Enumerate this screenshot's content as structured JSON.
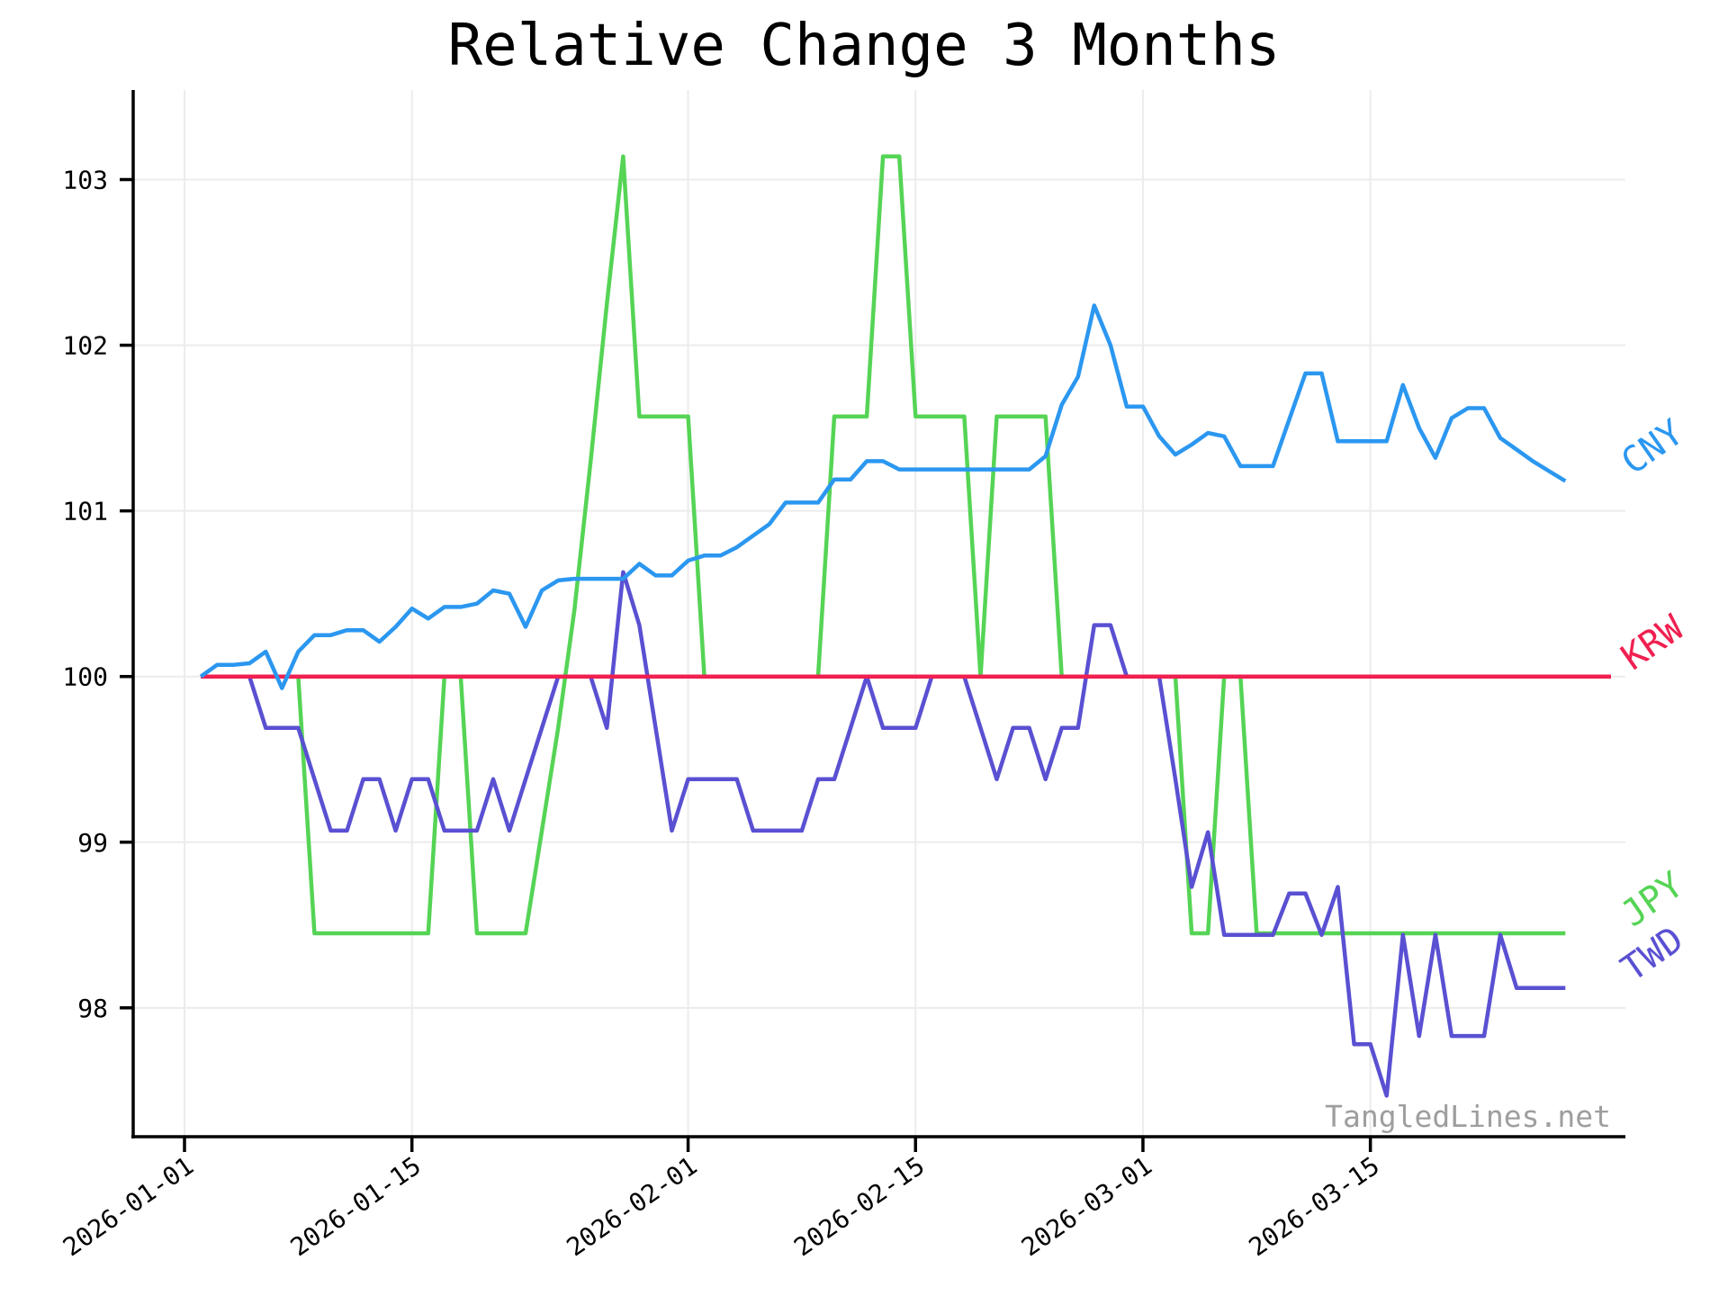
{
  "title": "Relative Change 3 Months",
  "watermark": "TangledLines.net",
  "axes": {
    "x_tick_labels": [
      "2026-01-01",
      "2026-01-15",
      "2026-02-01",
      "2026-02-15",
      "2026-03-01",
      "2026-03-15"
    ],
    "y_tick_labels": [
      "98",
      "99",
      "100",
      "101",
      "102",
      "103"
    ]
  },
  "colors": {
    "cny_blue": "#2b97f0",
    "krw_red": "#f02050",
    "jpy_green": "#55d455",
    "twd_purple": "#5a50d2",
    "grid": "#ececec",
    "axis": "#000000",
    "watermark_gray": "#9e9e9e"
  },
  "chart_data": {
    "type": "line",
    "title": "Relative Change 3 Months",
    "xlabel": "",
    "ylabel": "",
    "start_date": "2026-01-02",
    "frequency": "daily",
    "n_points": 85,
    "x_tick_days_since_2026_01_01": [
      0,
      14,
      31,
      45,
      59,
      73
    ],
    "x_tick_labels": [
      "2026-01-01",
      "2026-01-15",
      "2026-02-01",
      "2026-02-15",
      "2026-03-01",
      "2026-03-15"
    ],
    "y_ticks": [
      98,
      99,
      100,
      101,
      102,
      103
    ],
    "ylim": [
      97.22,
      103.55
    ],
    "grid": true,
    "legend_position": "line-end-labels-right",
    "baseline_value": 100,
    "series": [
      {
        "name": "JPY",
        "color": "#55d455",
        "values": [
          100,
          100,
          100,
          100,
          100,
          100,
          100,
          98.45,
          98.45,
          98.45,
          98.45,
          98.45,
          98.45,
          98.45,
          98.45,
          100.0,
          100.0,
          98.45,
          98.45,
          98.45,
          98.45,
          99.07,
          99.69,
          100.4,
          101.3,
          102.25,
          103.14,
          101.57,
          101.57,
          101.57,
          101.57,
          100.0,
          100,
          100,
          100,
          100,
          100,
          100,
          100,
          101.57,
          101.57,
          101.57,
          103.14,
          103.14,
          101.57,
          101.57,
          101.57,
          101.57,
          100.0,
          101.57,
          101.57,
          101.57,
          101.57,
          100.0,
          100,
          100,
          100,
          100,
          100,
          100,
          100,
          98.45,
          98.45,
          100.0,
          100.0,
          98.45,
          98.45,
          98.45,
          98.45,
          98.45,
          98.45,
          98.45,
          98.45,
          98.45,
          98.45,
          98.45,
          98.45,
          98.45,
          98.45,
          98.45,
          98.45,
          98.45,
          98.45,
          98.45,
          98.45
        ]
      },
      {
        "name": "TWD",
        "color": "#5a50d2",
        "values": [
          100,
          100,
          100,
          100,
          99.69,
          99.69,
          99.69,
          99.38,
          99.07,
          99.07,
          99.38,
          99.38,
          99.07,
          99.38,
          99.38,
          99.07,
          99.07,
          99.07,
          99.38,
          99.07,
          99.38,
          99.69,
          100.0,
          100.0,
          100.0,
          99.69,
          100.63,
          100.31,
          99.69,
          99.07,
          99.38,
          99.38,
          99.38,
          99.38,
          99.07,
          99.07,
          99.07,
          99.07,
          99.38,
          99.38,
          99.69,
          100.0,
          99.69,
          99.69,
          99.69,
          100.0,
          100.0,
          100.0,
          99.69,
          99.38,
          99.69,
          99.69,
          99.38,
          99.69,
          99.69,
          100.31,
          100.31,
          100.0,
          100.0,
          100.0,
          99.38,
          98.73,
          99.06,
          98.44,
          98.44,
          98.44,
          98.44,
          98.69,
          98.69,
          98.44,
          98.73,
          97.78,
          97.78,
          97.47,
          98.44,
          97.83,
          98.44,
          97.83,
          97.83,
          97.83,
          98.44,
          98.12,
          98.12,
          98.12,
          98.12
        ]
      },
      {
        "name": "KRW",
        "color": "#f02050",
        "values": [
          100,
          100,
          100,
          100,
          100,
          100,
          100,
          100,
          100,
          100,
          100,
          100,
          100,
          100,
          100,
          100,
          100,
          100,
          100,
          100,
          100,
          100,
          100,
          100,
          100,
          100,
          100,
          100,
          100,
          100,
          100,
          100,
          100,
          100,
          100,
          100,
          100,
          100,
          100,
          100,
          100,
          100,
          100,
          100,
          100,
          100,
          100,
          100,
          100,
          100,
          100,
          100,
          100,
          100,
          100,
          100,
          100,
          100,
          100,
          100,
          100,
          100,
          100,
          100,
          100,
          100,
          100,
          100,
          100,
          100,
          100,
          100,
          100,
          100,
          100,
          100,
          100,
          100,
          100,
          100,
          100,
          100,
          100,
          100,
          100
        ]
      },
      {
        "name": "CNY",
        "color": "#2b97f0",
        "values": [
          100.0,
          100.07,
          100.07,
          100.08,
          100.15,
          99.93,
          100.15,
          100.25,
          100.25,
          100.28,
          100.28,
          100.21,
          100.3,
          100.41,
          100.35,
          100.42,
          100.42,
          100.44,
          100.52,
          100.5,
          100.3,
          100.52,
          100.58,
          100.59,
          100.59,
          100.59,
          100.59,
          100.68,
          100.61,
          100.61,
          100.7,
          100.73,
          100.73,
          100.78,
          100.85,
          100.92,
          101.05,
          101.05,
          101.05,
          101.19,
          101.19,
          101.3,
          101.3,
          101.25,
          101.25,
          101.25,
          101.25,
          101.25,
          101.25,
          101.25,
          101.25,
          101.25,
          101.33,
          101.64,
          101.81,
          102.24,
          102.0,
          101.63,
          101.63,
          101.45,
          101.34,
          101.4,
          101.47,
          101.45,
          101.27,
          101.27,
          101.27,
          101.55,
          101.83,
          101.83,
          101.42,
          101.42,
          101.42,
          101.42,
          101.76,
          101.5,
          101.32,
          101.56,
          101.62,
          101.62,
          101.44,
          101.37,
          101.3,
          101.24,
          101.18
        ]
      }
    ]
  }
}
